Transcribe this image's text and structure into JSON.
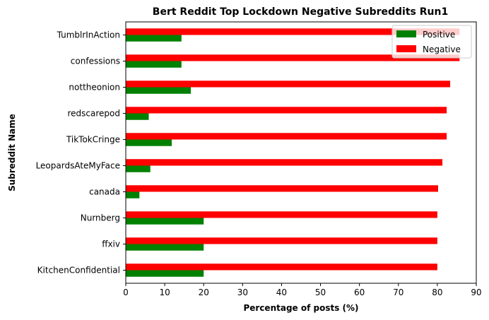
{
  "chart_data": {
    "type": "bar",
    "orientation": "horizontal",
    "title": "Bert Reddit Top Lockdown Negative Subreddits Run1",
    "xlabel": "Percentage of posts (%)",
    "ylabel": "Subreddit Name",
    "xlim": [
      0,
      90
    ],
    "xticks": [
      "0",
      "10",
      "20",
      "30",
      "40",
      "50",
      "60",
      "70",
      "80",
      "90"
    ],
    "grid": false,
    "legend_position": "top-right",
    "categories": [
      "TumblrInAction",
      "confessions",
      "nottheonion",
      "redscarepod",
      "TikTokCringe",
      "LeopardsAteMyFace",
      "canada",
      "Nurnberg",
      "ffxiv",
      "KitchenConfidential"
    ],
    "series": [
      {
        "name": "Positive",
        "color": "#008000",
        "values": [
          14.3,
          14.3,
          16.7,
          5.9,
          11.8,
          6.3,
          3.5,
          20.0,
          20.0,
          20.0
        ]
      },
      {
        "name": "Negative",
        "color": "#ff0000",
        "values": [
          85.7,
          85.7,
          83.3,
          82.4,
          82.4,
          81.3,
          80.2,
          80.0,
          80.0,
          80.0
        ]
      }
    ]
  }
}
